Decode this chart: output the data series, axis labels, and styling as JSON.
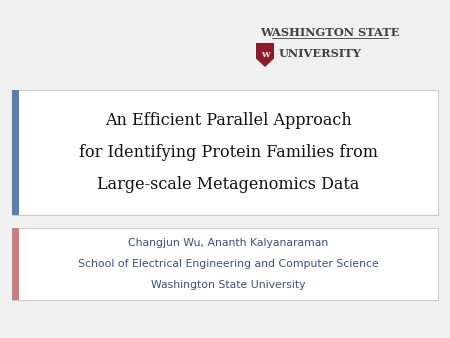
{
  "bg_color": "#f0f0f0",
  "title_text_line1": "An Efficient Parallel Approach",
  "title_text_line2": "for Identifying Protein Families from",
  "title_text_line3": "Large-scale Metagenomics Data",
  "author_line1": "Changjun Wu, Ananth Kalyanaraman",
  "author_line2": "School of Electrical Engineering and Computer Science",
  "author_line3": "Washington State University",
  "wsu_line1": "WASHINGTON STATE",
  "wsu_line2": "UNIVERSITY",
  "title_box_bg": "#ffffff",
  "title_box_border": "#cccccc",
  "title_bar_color": "#5b7fad",
  "author_box_bg": "#ffffff",
  "author_box_border": "#cccccc",
  "author_bar_color": "#c48080",
  "wsu_text_color": "#404040",
  "title_font_color": "#111111",
  "author_font_color": "#3a5080",
  "shield_color": "#8b1a2b",
  "shield_text_color": "#ffffff",
  "wsu_underline_color": "#404040"
}
